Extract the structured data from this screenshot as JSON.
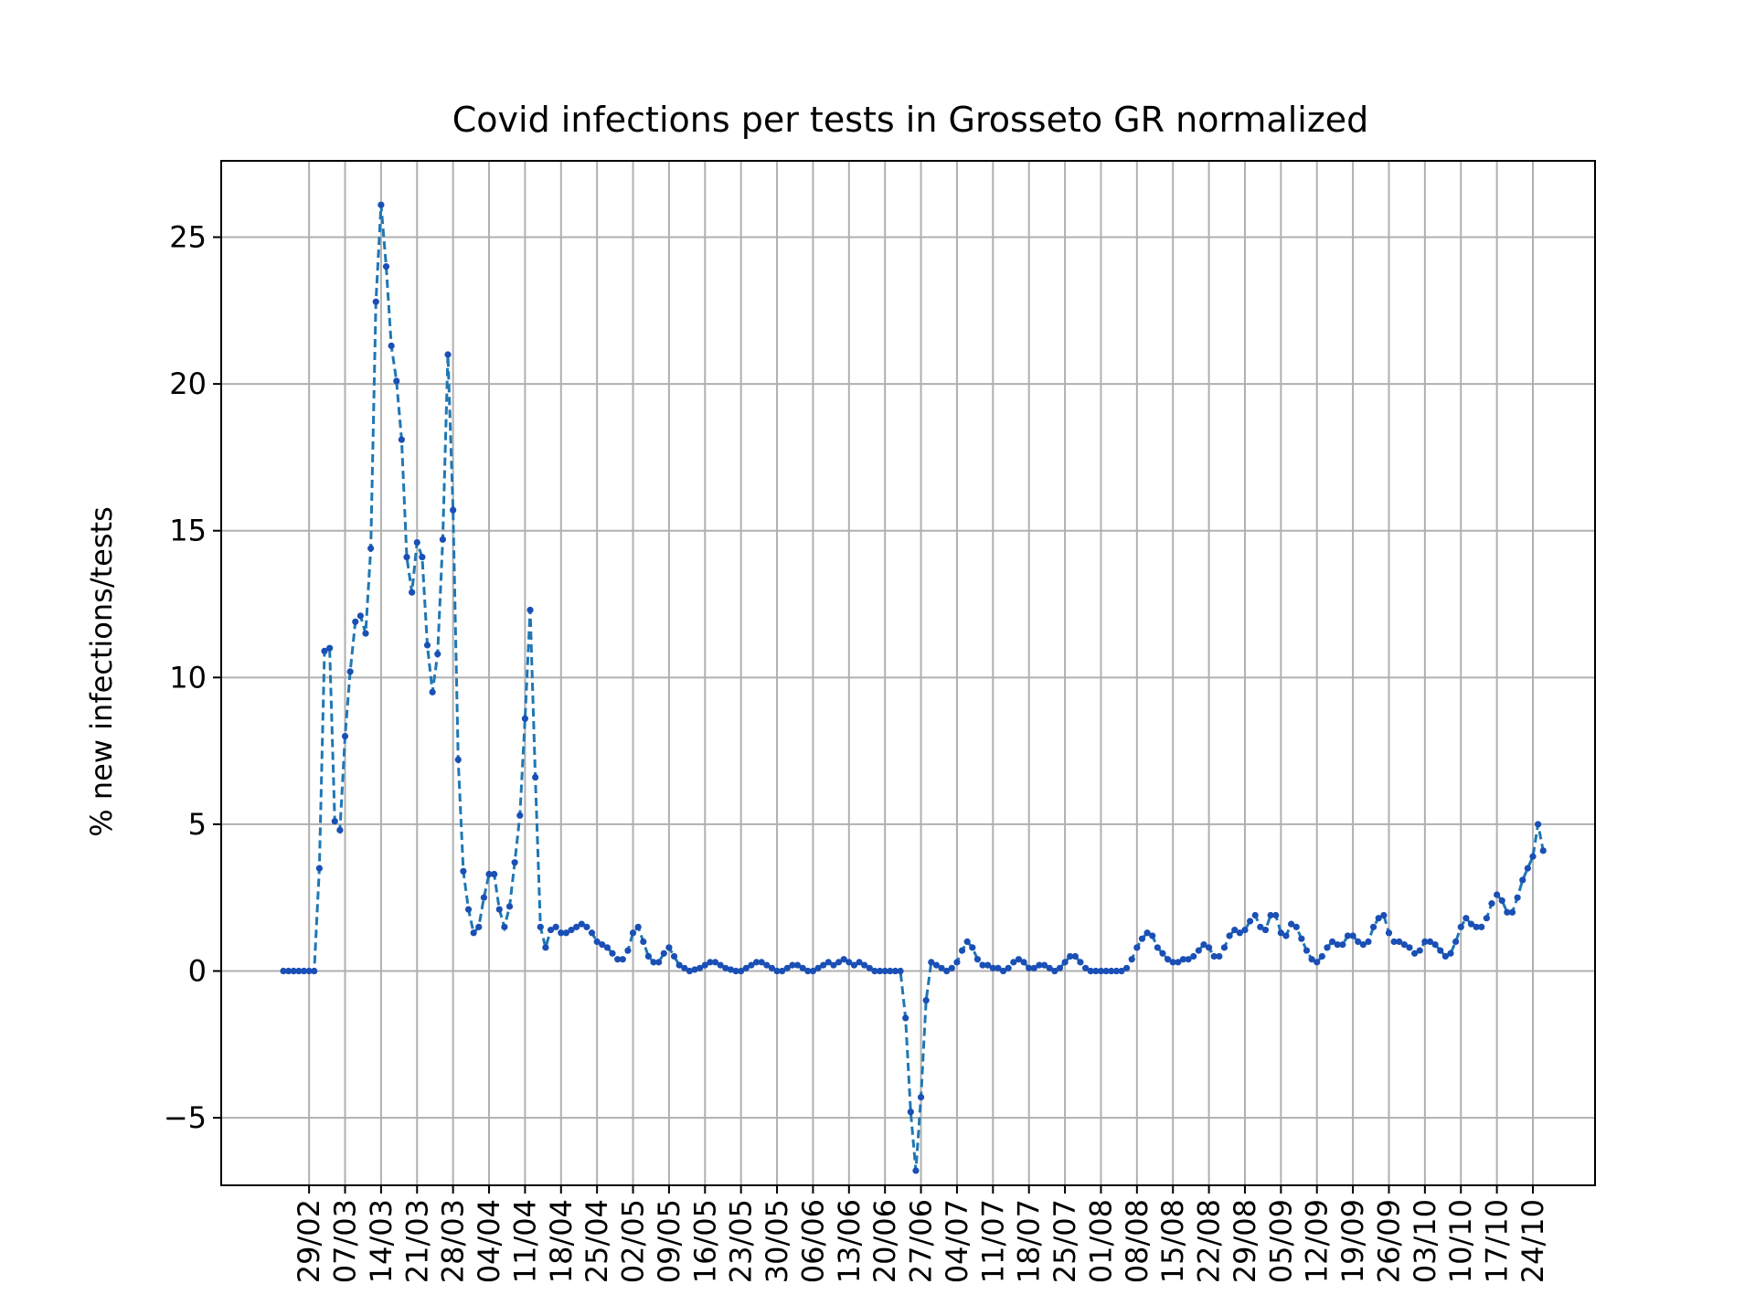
{
  "chart_data": {
    "type": "line",
    "title": "Covid infections per tests in Grosseto GR normalized",
    "xlabel": "",
    "ylabel": "% new infections/tests",
    "ylim": [
      -7.3,
      27.6
    ],
    "yticks": [
      -5,
      0,
      5,
      10,
      15,
      20,
      25
    ],
    "ytick_labels": [
      "−5",
      "0",
      "5",
      "10",
      "15",
      "20",
      "25"
    ],
    "xticks": [
      "29/02",
      "07/03",
      "14/03",
      "21/03",
      "28/03",
      "04/04",
      "11/04",
      "18/04",
      "25/04",
      "02/05",
      "09/05",
      "16/05",
      "23/05",
      "30/05",
      "06/06",
      "13/06",
      "20/06",
      "27/06",
      "04/07",
      "11/07",
      "18/07",
      "25/07",
      "01/08",
      "08/08",
      "15/08",
      "22/08",
      "29/08",
      "05/09",
      "12/09",
      "19/09",
      "26/09",
      "03/10",
      "10/10",
      "17/10",
      "24/10"
    ],
    "grid": true,
    "x_start": "2020-02-24",
    "x_end": "2020-10-24",
    "series": [
      {
        "color": "#1f77b4",
        "marker_color": "#1a4fb5",
        "values": [
          0,
          0,
          0,
          0,
          0,
          0,
          0,
          3.5,
          10.9,
          11.0,
          5.1,
          4.8,
          8.0,
          10.2,
          11.9,
          12.1,
          11.5,
          14.4,
          22.8,
          26.1,
          24.0,
          21.3,
          20.1,
          18.1,
          14.1,
          12.9,
          14.6,
          14.1,
          11.1,
          9.5,
          10.8,
          14.7,
          21.0,
          15.7,
          7.2,
          3.4,
          2.1,
          1.3,
          1.5,
          2.5,
          3.3,
          3.3,
          2.1,
          1.5,
          2.2,
          3.7,
          5.3,
          8.6,
          12.3,
          6.6,
          1.5,
          0.8,
          1.4,
          1.5,
          1.3,
          1.3,
          1.4,
          1.5,
          1.6,
          1.5,
          1.3,
          1.0,
          0.9,
          0.8,
          0.6,
          0.4,
          0.4,
          0.7,
          1.3,
          1.5,
          1.0,
          0.5,
          0.3,
          0.3,
          0.6,
          0.8,
          0.5,
          0.2,
          0.1,
          0,
          0.05,
          0.1,
          0.2,
          0.3,
          0.3,
          0.2,
          0.1,
          0.05,
          0,
          0,
          0.1,
          0.2,
          0.3,
          0.3,
          0.2,
          0.1,
          0,
          0,
          0.1,
          0.2,
          0.2,
          0.1,
          0,
          0,
          0.1,
          0.2,
          0.3,
          0.2,
          0.3,
          0.4,
          0.3,
          0.2,
          0.3,
          0.2,
          0.1,
          0,
          0,
          0,
          0,
          0,
          0,
          -1.6,
          -4.8,
          -6.8,
          -4.3,
          -1.0,
          0.3,
          0.2,
          0.1,
          0,
          0.1,
          0.3,
          0.7,
          1.0,
          0.8,
          0.4,
          0.2,
          0.2,
          0.1,
          0.1,
          0,
          0.1,
          0.3,
          0.4,
          0.3,
          0.1,
          0.1,
          0.2,
          0.2,
          0.1,
          0,
          0.1,
          0.3,
          0.5,
          0.5,
          0.3,
          0.1,
          0,
          0,
          0,
          0,
          0,
          0,
          0,
          0.1,
          0.4,
          0.8,
          1.1,
          1.3,
          1.2,
          0.8,
          0.6,
          0.4,
          0.3,
          0.3,
          0.4,
          0.4,
          0.5,
          0.7,
          0.9,
          0.8,
          0.5,
          0.5,
          0.8,
          1.2,
          1.4,
          1.3,
          1.4,
          1.7,
          1.9,
          1.5,
          1.4,
          1.9,
          1.9,
          1.3,
          1.2,
          1.6,
          1.5,
          1.1,
          0.7,
          0.4,
          0.3,
          0.5,
          0.8,
          1.0,
          0.9,
          0.9,
          1.2,
          1.2,
          1.0,
          0.9,
          1.0,
          1.5,
          1.8,
          1.9,
          1.3,
          1.0,
          1.0,
          0.9,
          0.8,
          0.6,
          0.7,
          1.0,
          1.0,
          0.9,
          0.7,
          0.5,
          0.6,
          1.0,
          1.5,
          1.8,
          1.6,
          1.5,
          1.5,
          1.8,
          2.3,
          2.6,
          2.4,
          2.0,
          2.0,
          2.5,
          3.1,
          3.5,
          3.9,
          5.0,
          4.1
        ]
      }
    ]
  }
}
